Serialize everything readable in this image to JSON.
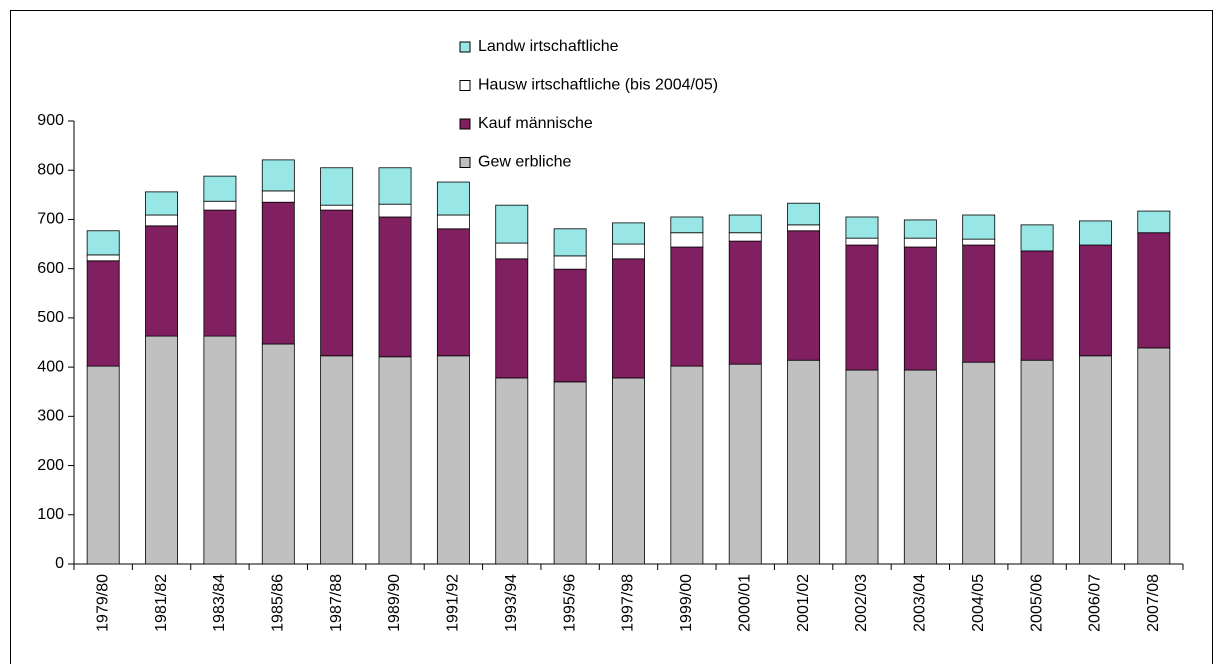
{
  "chart_data": {
    "type": "stacked-bar",
    "categories": [
      "1979/80",
      "1981/82",
      "1983/84",
      "1985/86",
      "1987/88",
      "1989/90",
      "1991/92",
      "1993/94",
      "1995/96",
      "1997/98",
      "1999/00",
      "2000/01",
      "2001/02",
      "2002/03",
      "2003/04",
      "2004/05",
      "2005/06",
      "2006/07",
      "2007/08"
    ],
    "series": [
      {
        "name": "Gew erbliche",
        "color": "#c0c0c0",
        "values": [
          402,
          463,
          463,
          447,
          423,
          421,
          423,
          378,
          370,
          378,
          402,
          406,
          414,
          394,
          394,
          410,
          414,
          423,
          439
        ]
      },
      {
        "name": "Kauf männische",
        "color": "#802060",
        "values": [
          214,
          224,
          256,
          288,
          296,
          284,
          258,
          242,
          229,
          242,
          242,
          250,
          263,
          254,
          250,
          238,
          222,
          225,
          234
        ]
      },
      {
        "name": "Hausw irtschaftliche (bis 2004/05)",
        "color": "#ffffff",
        "values": [
          12,
          22,
          18,
          23,
          10,
          26,
          28,
          32,
          27,
          30,
          29,
          17,
          12,
          14,
          18,
          12,
          null,
          null,
          null
        ]
      },
      {
        "name": "Landw irtschaftliche",
        "color": "#99e6e6",
        "values": [
          49,
          47,
          51,
          63,
          76,
          74,
          67,
          77,
          55,
          43,
          32,
          36,
          44,
          43,
          37,
          49,
          53,
          49,
          44
        ]
      }
    ],
    "ylim": [
      0,
      900
    ],
    "yticks": [
      0,
      100,
      200,
      300,
      400,
      500,
      600,
      700,
      800,
      900
    ],
    "grid": false
  }
}
